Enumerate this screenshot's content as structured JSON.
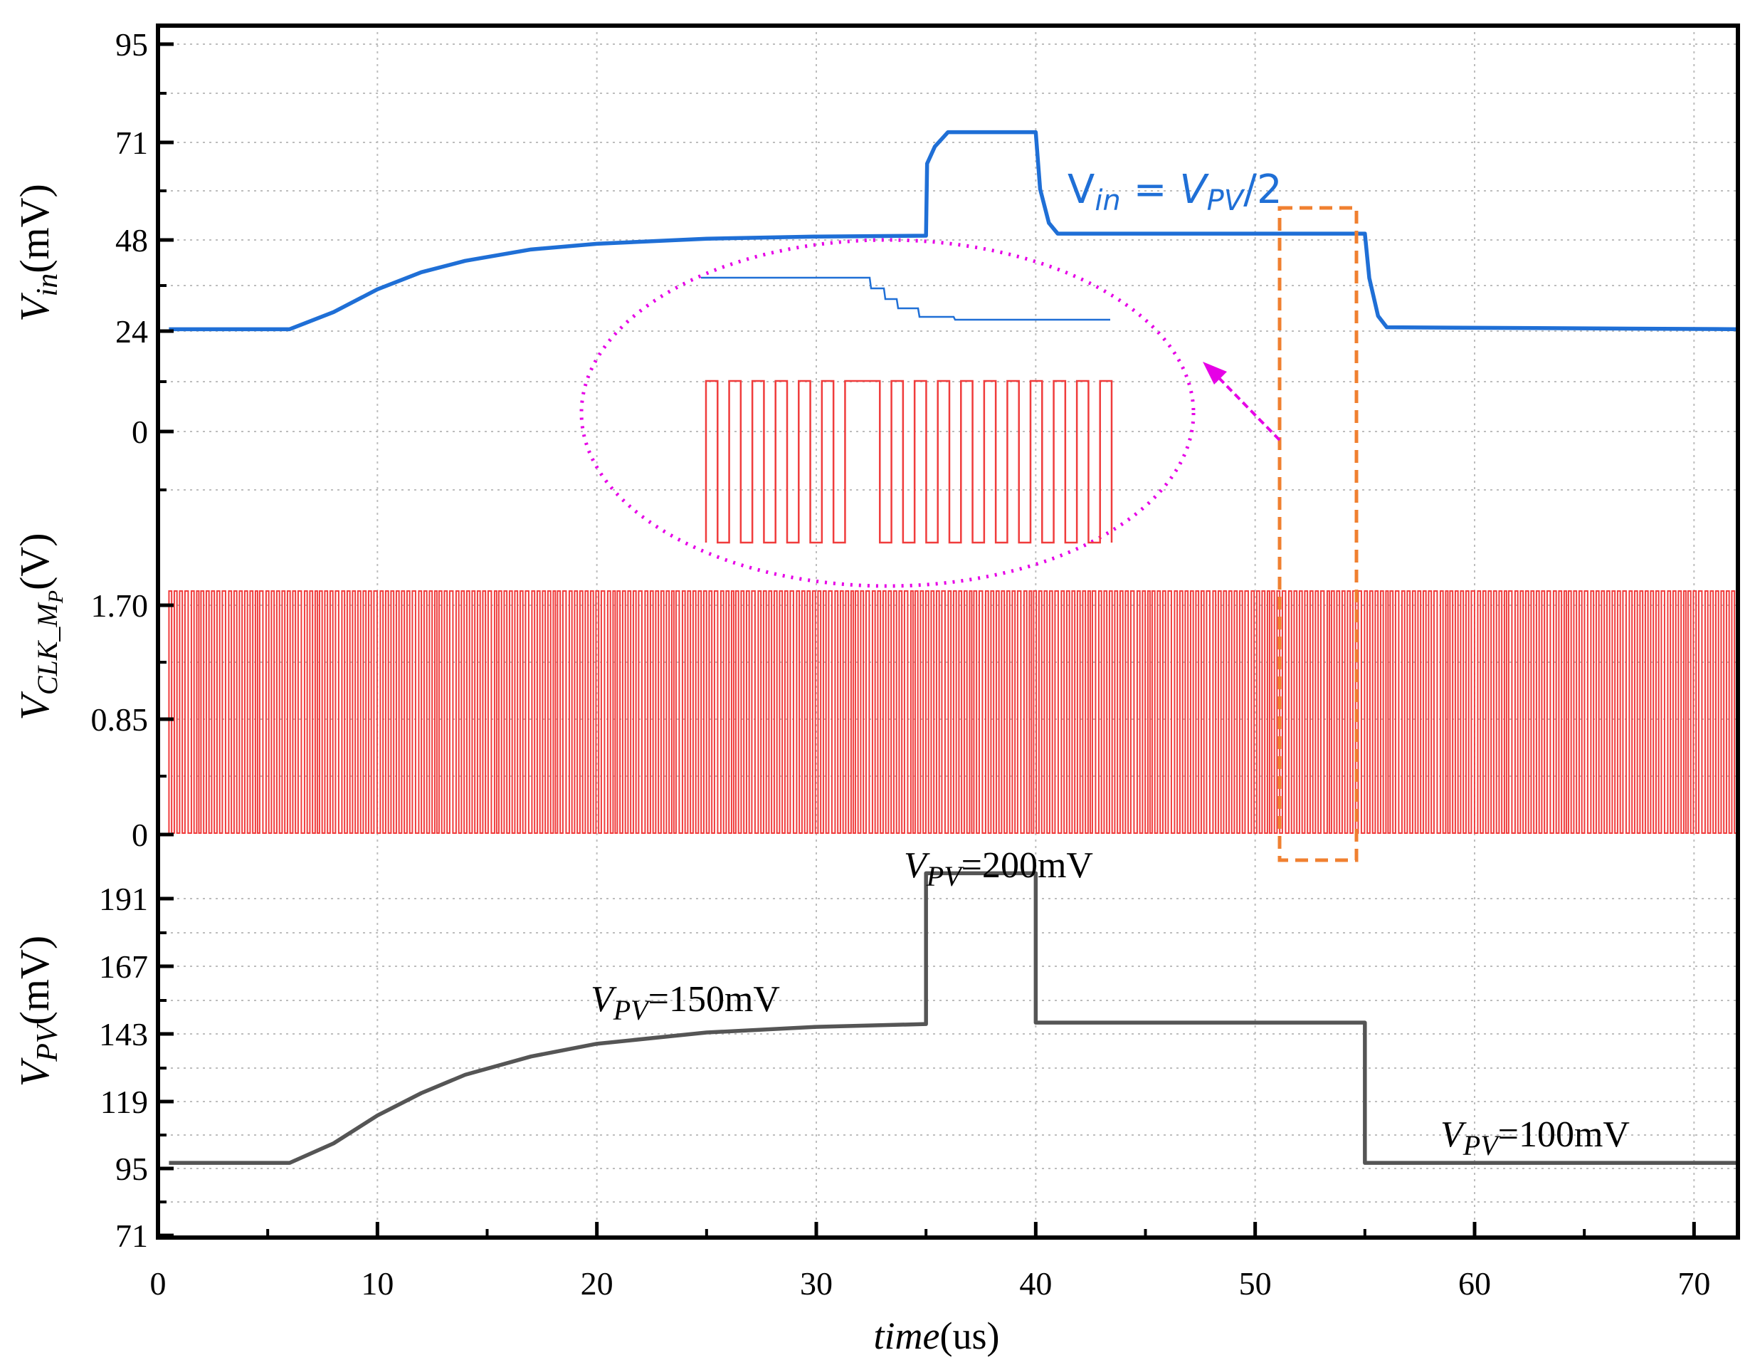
{
  "chart_data": {
    "type": "line",
    "title": "",
    "x": {
      "label_italic": "time",
      "label_unit": "(us)",
      "range": [
        0,
        72
      ],
      "ticks": [
        "0",
        "10",
        "20",
        "30",
        "40",
        "50",
        "60",
        "70"
      ],
      "tick_values": [
        0,
        10,
        20,
        30,
        40,
        50,
        60,
        70
      ]
    },
    "panels": [
      {
        "name": "vin",
        "ylabel_main": "V",
        "ylabel_sub": "in",
        "ylabel_unit": "(mV)",
        "ylim": [
          -30,
          95
        ],
        "yticks": [
          "95",
          "71",
          "48",
          "24",
          "0"
        ],
        "ytick_values": [
          95,
          71,
          48,
          24,
          0
        ],
        "series": [
          {
            "name": "Vin",
            "color": "#1f6fd6",
            "points": [
              [
                0.5,
                24.5
              ],
              [
                6,
                24.5
              ],
              [
                8,
                29
              ],
              [
                10,
                35
              ],
              [
                12,
                39.5
              ],
              [
                14,
                42.5
              ],
              [
                17,
                45.5
              ],
              [
                20,
                47
              ],
              [
                25,
                48.3
              ],
              [
                30,
                48.8
              ],
              [
                35,
                49
              ],
              [
                35.05,
                66
              ],
              [
                35.4,
                70
              ],
              [
                36,
                73.5
              ],
              [
                40,
                73.5
              ],
              [
                40.2,
                60
              ],
              [
                40.6,
                52
              ],
              [
                41,
                49.5
              ],
              [
                55,
                49.5
              ],
              [
                55.2,
                38
              ],
              [
                55.6,
                28
              ],
              [
                56,
                25
              ],
              [
                72,
                24.5
              ]
            ]
          }
        ]
      },
      {
        "name": "clk",
        "ylabel_main": "V",
        "ylabel_sub": "CLK_M",
        "ylabel_sub2": "P",
        "ylabel_unit": "(V)",
        "ylim": [
          0,
          2.2
        ],
        "yticks": [
          "1.70",
          "0.85",
          "0"
        ],
        "ytick_values": [
          1.7,
          0.85,
          0
        ],
        "series": [
          {
            "name": "VCLK_MP",
            "color": "#f03c3c",
            "type": "square-wave",
            "high": 1.78,
            "low": 0,
            "t_start": 0.5,
            "t_end": 72
          }
        ]
      },
      {
        "name": "vpv",
        "ylabel_main": "V",
        "ylabel_sub": "PV",
        "ylabel_unit": "(mV)",
        "ylim": [
          71,
          210
        ],
        "yticks": [
          "191",
          "167",
          "143",
          "119",
          "95",
          "71"
        ],
        "ytick_values": [
          191,
          167,
          143,
          119,
          95,
          71
        ],
        "series": [
          {
            "name": "VPV",
            "color": "#555555",
            "points": [
              [
                0.5,
                97
              ],
              [
                6,
                97
              ],
              [
                8,
                104
              ],
              [
                10,
                114
              ],
              [
                12,
                122
              ],
              [
                14,
                128.5
              ],
              [
                17,
                135
              ],
              [
                20,
                139.5
              ],
              [
                25,
                143.5
              ],
              [
                30,
                145.5
              ],
              [
                35,
                146.5
              ],
              [
                35,
                200
              ],
              [
                40,
                200
              ],
              [
                40,
                147
              ],
              [
                55,
                147
              ],
              [
                55,
                97
              ],
              [
                72,
                97
              ]
            ]
          }
        ]
      }
    ],
    "annotations": {
      "vin_formula": {
        "main": "V",
        "sub": "in",
        "eq": " = ",
        "rhs_main": "V",
        "rhs_sub": "PV",
        "rhs_tail": "/2"
      },
      "vpv_200": {
        "main": "V",
        "sub": "PV",
        "value": "=200mV"
      },
      "vpv_150": {
        "main": "V",
        "sub": "PV",
        "value": "=150mV"
      },
      "vpv_100": {
        "main": "V",
        "sub": "PV",
        "value": "=100mV"
      }
    },
    "inset": {
      "note": "zoomed view of the highlighted window",
      "ellipse_color": "#e600e6",
      "box_color": "#f08030",
      "vin_color": "#1f6fd6",
      "clk_color": "#f03c3c",
      "clk_pulses": [
        1,
        0,
        1,
        0,
        1,
        0,
        1,
        0,
        1,
        0,
        1,
        0,
        1,
        1,
        1,
        0,
        1,
        0,
        1,
        0,
        1,
        0,
        1,
        0,
        1,
        0,
        1,
        0,
        1,
        0,
        1,
        0,
        1,
        0,
        1
      ]
    }
  }
}
